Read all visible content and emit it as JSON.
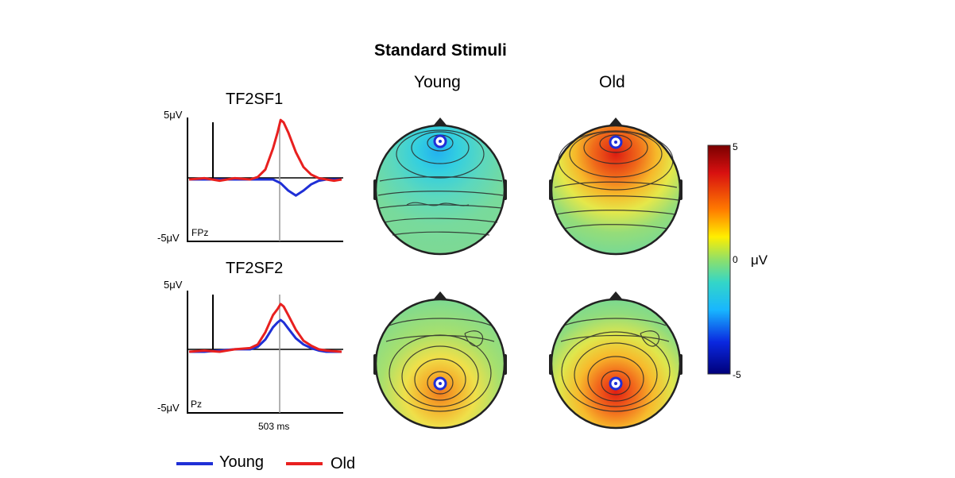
{
  "title": "Standard Stimuli",
  "columns": {
    "young": "Young",
    "old": "Old"
  },
  "colorbar": {
    "max": 5,
    "mid": 0,
    "min": -5,
    "max_label": "5",
    "mid_label": "0",
    "min_label": "-5",
    "unit": "μV"
  },
  "legend": {
    "young_label": "Young",
    "old_label": "Old",
    "young_color": "#1f2fd6",
    "old_color": "#e8201f"
  },
  "chart_data": [
    {
      "type": "line",
      "title": "TF2SF1",
      "channel": "FPz",
      "ymax_label": "5μV",
      "ymin_label": "-5μV",
      "ylim": [
        -5,
        5
      ],
      "marker_label": "",
      "series": [
        {
          "name": "Young",
          "color": "#1f2fd6",
          "x": [
            0,
            10,
            20,
            30,
            40,
            50,
            55,
            60,
            65,
            70,
            75,
            80,
            85,
            90,
            95,
            100
          ],
          "values": [
            0,
            0,
            0,
            0,
            0,
            0,
            0,
            -0.3,
            -0.9,
            -1.3,
            -0.9,
            -0.4,
            -0.1,
            0,
            0,
            0
          ]
        },
        {
          "name": "Old",
          "color": "#e8201f",
          "x": [
            0,
            10,
            20,
            30,
            40,
            45,
            50,
            55,
            58,
            60,
            62,
            65,
            70,
            75,
            80,
            85,
            90,
            95,
            100
          ],
          "values": [
            0,
            0.1,
            -0.1,
            0.1,
            0,
            0.2,
            0.8,
            2.5,
            3.8,
            4.8,
            4.6,
            3.8,
            2.2,
            1.0,
            0.4,
            0.1,
            0,
            -0.1,
            0
          ]
        }
      ]
    },
    {
      "type": "line",
      "title": "TF2SF2",
      "channel": "Pz",
      "ymax_label": "5μV",
      "ymin_label": "-5μV",
      "ylim": [
        -5,
        5
      ],
      "marker_label": "503 ms",
      "series": [
        {
          "name": "Young",
          "color": "#1f2fd6",
          "x": [
            0,
            10,
            20,
            30,
            40,
            45,
            50,
            55,
            58,
            60,
            62,
            65,
            70,
            75,
            80,
            85,
            90,
            100
          ],
          "values": [
            0,
            0,
            0.1,
            0.2,
            0.2,
            0.4,
            1.0,
            2.0,
            2.4,
            2.6,
            2.4,
            1.9,
            1.1,
            0.6,
            0.3,
            0.1,
            0,
            0
          ]
        },
        {
          "name": "Old",
          "color": "#e8201f",
          "x": [
            0,
            10,
            20,
            30,
            40,
            45,
            50,
            55,
            58,
            60,
            62,
            65,
            70,
            75,
            80,
            85,
            90,
            100
          ],
          "values": [
            0,
            0.1,
            0,
            0.2,
            0.3,
            0.6,
            1.6,
            3.0,
            3.5,
            3.9,
            3.7,
            3.0,
            1.8,
            0.9,
            0.5,
            0.2,
            0.1,
            0
          ]
        }
      ]
    }
  ]
}
